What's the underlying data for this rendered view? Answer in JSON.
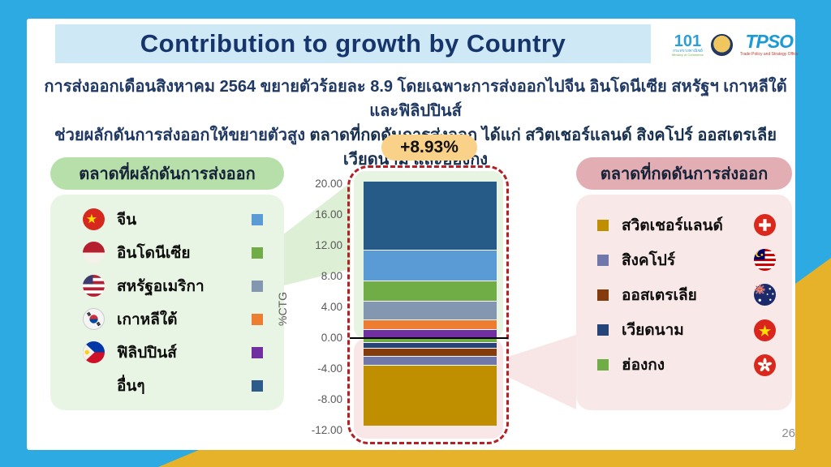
{
  "page": {
    "number": "26"
  },
  "header": {
    "title": "Contribution to growth by Country",
    "logos": {
      "anniversary": "101",
      "moc_caption_th": "กระทรวงพาณิชย์",
      "moc_caption_en": "Ministry of Commerce",
      "tpso_acronym": "TPSO",
      "tpso_caption": "Trade Policy and Strategy Office"
    }
  },
  "intro": {
    "line1": "การส่งออกเดือนสิงหาคม 2564 ขยายตัวร้อยละ 8.9 โดยเฉพาะการส่งออกไปจีน อินโดนีเซีย สหรัฐฯ เกาหลีใต้ และฟิลิปปินส์",
    "line2_start": "ช่วยผลักดันการส่งออกให้ขยายตัวสูง ",
    "line2_bold": "ตลาดที่กดดันการส่งออก ได้แก่ สวิตเชอร์แลนด์ สิงคโปร์ ออสเตรเลีย เวียดนาม และฮ่องกง"
  },
  "positive_panel": {
    "title": "ตลาดที่ผลักดันการส่งออก",
    "items": [
      {
        "label": "จีน",
        "flag": "china-flag",
        "color": "#5b9bd5"
      },
      {
        "label": "อินโดนีเซีย",
        "flag": "indonesia-flag",
        "color": "#70ad47"
      },
      {
        "label": "สหรัฐอเมริกา",
        "flag": "usa-flag",
        "color": "#8497b0"
      },
      {
        "label": "เกาหลีใต้",
        "flag": "south-korea-flag",
        "color": "#ed7d31"
      },
      {
        "label": "ฟิลิปปินส์",
        "flag": "philippines-flag",
        "color": "#7030a0"
      },
      {
        "label": "อื่นๆ",
        "flag": null,
        "color": "#2e5c8a"
      }
    ]
  },
  "negative_panel": {
    "title": "ตลาดที่กดดันการส่งออก",
    "items": [
      {
        "label": "สวิตเชอร์แลนด์",
        "flag": "switzerland-flag",
        "color": "#bf8f00"
      },
      {
        "label": "สิงคโปร์",
        "flag": "singapore-flag",
        "color": "#6f77ab"
      },
      {
        "label": "ออสเตรเลีย",
        "flag": "australia-flag",
        "color": "#843c0c"
      },
      {
        "label": "เวียดนาม",
        "flag": "vietnam-flag",
        "color": "#264478"
      },
      {
        "label": "ฮ่องกง",
        "flag": "hong-kong-flag",
        "color": "#70ad47"
      }
    ]
  },
  "chart_data": {
    "type": "bar",
    "subtype": "single-stacked-column",
    "title": "Contribution to growth by Country, August 2021",
    "badge": "+8.93%",
    "xlabel": "",
    "ylabel": "%CTG",
    "ylim": [
      -12.8,
      20.8
    ],
    "grid": false,
    "legend_position": "side-panels",
    "ytick_values": [
      20,
      16,
      12,
      8,
      4,
      0,
      -4,
      -8,
      -12
    ],
    "ytick_labels": [
      "20.00",
      "16.00",
      "12.00",
      "8.00",
      "4.00",
      "0.00",
      "-4.00",
      "-8.00",
      "-12.00"
    ],
    "net_growth_pct": 8.93,
    "series": [
      {
        "name": "อื่นๆ",
        "name_en": "Others",
        "value": 8.8,
        "color": "#275b87"
      },
      {
        "name": "จีน",
        "name_en": "China",
        "value": 4.0,
        "color": "#5b9bd5"
      },
      {
        "name": "อินโดนีเซีย",
        "name_en": "Indonesia",
        "value": 2.7,
        "color": "#70ad47"
      },
      {
        "name": "สหรัฐอเมริกา",
        "name_en": "United States",
        "value": 2.4,
        "color": "#8497b0"
      },
      {
        "name": "เกาหลีใต้",
        "name_en": "South Korea",
        "value": 1.2,
        "color": "#ed7d31"
      },
      {
        "name": "ฟิลิปปินส์",
        "name_en": "Philippines",
        "value": 1.2,
        "color": "#7030a0"
      },
      {
        "name": "ฮ่องกง",
        "name_en": "Hong Kong",
        "value": -0.5,
        "color": "#70ad47"
      },
      {
        "name": "เวียดนาม",
        "name_en": "Vietnam",
        "value": -0.8,
        "color": "#264478"
      },
      {
        "name": "ออสเตรเลีย",
        "name_en": "Australia",
        "value": -1.0,
        "color": "#843c0c"
      },
      {
        "name": "สิงคโปร์",
        "name_en": "Singapore",
        "value": -1.15,
        "color": "#6f77ab"
      },
      {
        "name": "สวิตเชอร์แลนด์",
        "name_en": "Switzerland",
        "value": -7.95,
        "color": "#bf8f00"
      }
    ]
  }
}
